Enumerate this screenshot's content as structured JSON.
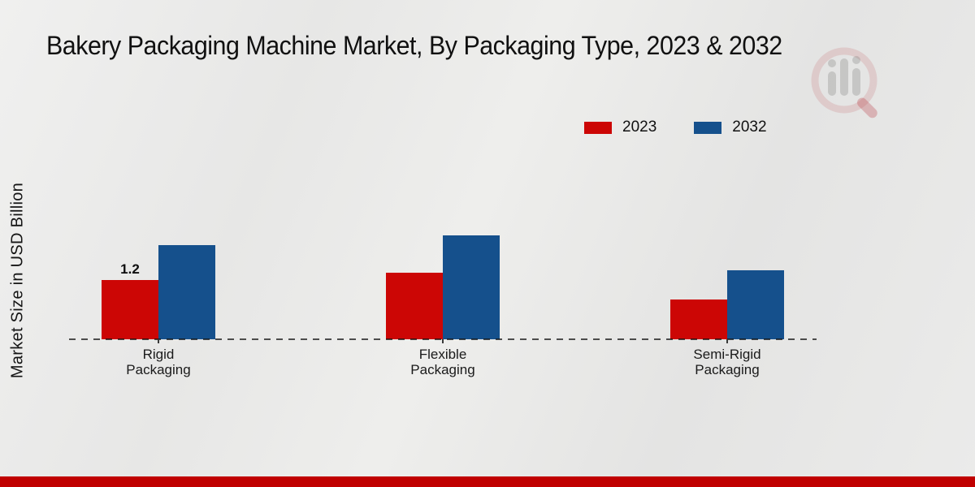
{
  "title": "Bakery Packaging Machine Market, By Packaging Type, 2023 & 2032",
  "ylabel": "Market Size in USD Billion",
  "legend": [
    {
      "label": "2023",
      "color": "#CC0605"
    },
    {
      "label": "2032",
      "color": "#15508C"
    }
  ],
  "watermark": {
    "icon": "mrfr-logo-watermark"
  },
  "footer": {
    "bar_color": "#C00000"
  },
  "chart_data": {
    "type": "bar",
    "title": "Bakery Packaging Machine Market, By Packaging Type, 2023 & 2032",
    "xlabel": "",
    "ylabel": "Market Size in USD Billion",
    "categories": [
      "Rigid Packaging",
      "Flexible Packaging",
      "Semi-Rigid Packaging"
    ],
    "series": [
      {
        "name": "2023",
        "color": "#CC0605",
        "values": [
          1.2,
          1.35,
          0.8
        ]
      },
      {
        "name": "2032",
        "color": "#15508C",
        "values": [
          1.9,
          2.1,
          1.4
        ]
      }
    ],
    "annotations": [
      {
        "series_index": 0,
        "category_index": 0,
        "text": "1.2"
      }
    ],
    "ylim": [
      0,
      2.4
    ],
    "grid": false,
    "legend_position": "top-right",
    "baseline_style": "dashed"
  }
}
